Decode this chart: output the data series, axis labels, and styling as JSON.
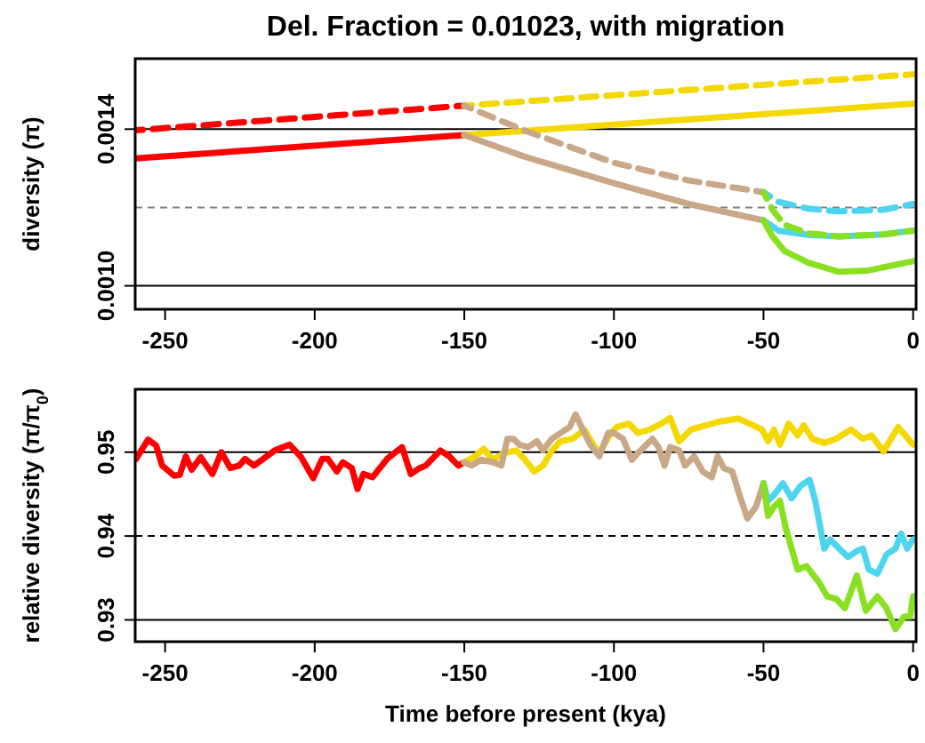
{
  "chart_data": [
    {
      "type": "line",
      "title": "Del. Fraction = 0.01023, with migration",
      "ylabel": "diversity (π)",
      "xlim": [
        -260,
        1
      ],
      "xticks": [
        -250,
        -200,
        -150,
        -100,
        -50,
        0
      ],
      "ylim": [
        0.00094,
        0.00158
      ],
      "yticks": [
        {
          "value": 0.001,
          "label": "0.0010"
        },
        {
          "value": 0.0014,
          "label": "0.0014"
        }
      ],
      "ref_lines": [
        {
          "axis": "y",
          "value": 0.001,
          "color": "#000000",
          "line_style": "solid"
        },
        {
          "axis": "y",
          "value": 0.0014,
          "color": "#000000",
          "line_style": "solid"
        },
        {
          "axis": "y",
          "value": 0.0012,
          "color": "#808080",
          "line_style": "dashed"
        }
      ],
      "series": [
        {
          "color": "#ff0000",
          "line_style": "solid",
          "x": [
            -260,
            -150
          ],
          "values": [
            0.001325,
            0.001385
          ]
        },
        {
          "color": "#f5d800",
          "line_style": "solid",
          "x": [
            -150,
            0
          ],
          "values": [
            0.001385,
            0.001465
          ]
        },
        {
          "color": "#c9a888",
          "line_style": "solid",
          "x": [
            -150,
            -130,
            -100,
            -75,
            -50
          ],
          "values": [
            0.001385,
            0.00133,
            0.001262,
            0.001209,
            0.001167
          ]
        },
        {
          "color": "#4dd4ee",
          "line_style": "solid",
          "x": [
            -50,
            -45,
            -35,
            -25,
            -10,
            0
          ],
          "values": [
            0.001167,
            0.001141,
            0.00113,
            0.001126,
            0.001131,
            0.001141
          ]
        },
        {
          "color": "#88e020",
          "line_style": "solid",
          "x": [
            -50,
            -47,
            -43,
            -35,
            -25,
            -15,
            0
          ],
          "values": [
            0.001167,
            0.001126,
            0.001089,
            0.001059,
            0.001036,
            0.001039,
            0.001063
          ]
        },
        {
          "color": "#ff0000",
          "line_style": "dashed",
          "x": [
            -260,
            -150
          ],
          "values": [
            0.001397,
            0.00146
          ]
        },
        {
          "color": "#f5d800",
          "line_style": "dashed",
          "x": [
            -150,
            0
          ],
          "values": [
            0.00146,
            0.00154
          ]
        },
        {
          "color": "#c9a888",
          "line_style": "dashed",
          "x": [
            -150,
            -130,
            -100,
            -75,
            -50
          ],
          "values": [
            0.00146,
            0.001397,
            0.001314,
            0.001269,
            0.001239
          ]
        },
        {
          "color": "#4dd4ee",
          "line_style": "dashed",
          "x": [
            -50,
            -45,
            -35,
            -25,
            -10,
            0
          ],
          "values": [
            0.001239,
            0.001214,
            0.001197,
            0.00119,
            0.001194,
            0.001209
          ]
        },
        {
          "color": "#88e020",
          "line_style": "dashed",
          "x": [
            -50,
            -47,
            -43,
            -35,
            -25,
            -10,
            0
          ],
          "values": [
            0.001239,
            0.001194,
            0.001156,
            0.001134,
            0.001126,
            0.001131,
            0.001141
          ]
        }
      ]
    },
    {
      "type": "line",
      "xlabel": "Time before present (kya)",
      "ylabel": "relative diversity (π/π$_{0}$)",
      "xlim": [
        -260,
        1
      ],
      "xticks": [
        -250,
        -200,
        -150,
        -100,
        -50,
        0
      ],
      "ylim": [
        0.9274,
        0.9575
      ],
      "yticks": [
        0.93,
        0.94,
        0.95
      ],
      "ref_lines": [
        {
          "axis": "y",
          "value": 0.93,
          "color": "#000000",
          "line_style": "solid"
        },
        {
          "axis": "y",
          "value": 0.95,
          "color": "#000000",
          "line_style": "solid"
        },
        {
          "axis": "y",
          "value": 0.94,
          "color": "#000000",
          "line_style": "dashed"
        }
      ],
      "series": [
        {
          "color": "#ff0000",
          "x": [
            -259.7,
            -255.7,
            -253,
            -251,
            -247,
            -245.1,
            -243.1,
            -241.1,
            -238.1,
            -234.2,
            -231.2,
            -228.2,
            -225.3,
            -223.3,
            -220.3,
            -216.4,
            -213.4,
            -208.4,
            -204.5,
            -200.5,
            -197.5,
            -195.6,
            -192.6,
            -190.6,
            -187.6,
            -185.7,
            -183.7,
            -180.7,
            -175.8,
            -170.8,
            -167.9,
            -164.9,
            -162.9,
            -158,
            -155,
            -152,
            -150
          ],
          "values": [
            0.9492,
            0.9515,
            0.9508,
            0.9484,
            0.9472,
            0.9473,
            0.9495,
            0.9479,
            0.9494,
            0.9474,
            0.95,
            0.9481,
            0.9484,
            0.9492,
            0.9484,
            0.9494,
            0.9502,
            0.9509,
            0.9494,
            0.9469,
            0.9492,
            0.9492,
            0.9477,
            0.9488,
            0.9481,
            0.9456,
            0.9474,
            0.947,
            0.9492,
            0.9506,
            0.9474,
            0.9481,
            0.9484,
            0.9502,
            0.9495,
            0.9484,
            0.9488
          ]
        },
        {
          "color": "#f5d800",
          "x": [
            -150,
            -146.5,
            -143.5,
            -140.5,
            -136.6,
            -132.6,
            -129.7,
            -126.7,
            -123.7,
            -120.7,
            -117.8,
            -113.8,
            -109.9,
            -106.9,
            -104.9,
            -100.9,
            -99,
            -95,
            -92,
            -88.1,
            -84.1,
            -81.2,
            -78.2,
            -74.2,
            -69.3,
            -65.3,
            -58.4,
            -53.4,
            -50.5,
            -48.5,
            -46.5,
            -44.5,
            -41.6,
            -38.6,
            -36.6,
            -33.7,
            -29.7,
            -25.7,
            -20.8,
            -16.8,
            -13.9,
            -9.9,
            -5,
            0
          ],
          "values": [
            0.9488,
            0.9495,
            0.9504,
            0.9491,
            0.9499,
            0.9502,
            0.9491,
            0.9477,
            0.9484,
            0.9502,
            0.9513,
            0.9516,
            0.9527,
            0.9509,
            0.9499,
            0.9523,
            0.953,
            0.9534,
            0.9523,
            0.9527,
            0.9534,
            0.9541,
            0.9513,
            0.9527,
            0.9532,
            0.9536,
            0.954,
            0.9532,
            0.9527,
            0.9513,
            0.9527,
            0.9509,
            0.9534,
            0.952,
            0.9532,
            0.9516,
            0.9511,
            0.9516,
            0.9527,
            0.9516,
            0.952,
            0.9501,
            0.953,
            0.9509
          ]
        },
        {
          "color": "#c9a888",
          "x": [
            -150,
            -147.5,
            -144.5,
            -140.5,
            -137.6,
            -135.6,
            -133.6,
            -131.6,
            -128.7,
            -125.7,
            -123.7,
            -120.7,
            -117.8,
            -114.8,
            -112.8,
            -109.9,
            -107.9,
            -104.9,
            -101.9,
            -100,
            -97,
            -94,
            -91.1,
            -89.1,
            -87.1,
            -85.1,
            -83.1,
            -81.2,
            -78.2,
            -76.2,
            -73.2,
            -70.3,
            -67.3,
            -65.3,
            -63.3,
            -60.4,
            -58.4,
            -55.4,
            -52.5,
            -50
          ],
          "values": [
            0.9488,
            0.9484,
            0.9491,
            0.9488,
            0.9484,
            0.9516,
            0.9516,
            0.9509,
            0.9506,
            0.9513,
            0.9502,
            0.9516,
            0.9523,
            0.953,
            0.9545,
            0.9523,
            0.9509,
            0.9495,
            0.9523,
            0.9523,
            0.9516,
            0.9491,
            0.9502,
            0.9509,
            0.9516,
            0.9506,
            0.9484,
            0.9506,
            0.9502,
            0.9484,
            0.9495,
            0.9477,
            0.947,
            0.9495,
            0.9481,
            0.9477,
            0.9453,
            0.9421,
            0.9435,
            0.9463
          ]
        },
        {
          "color": "#4dd4ee",
          "x": [
            -50,
            -48.5,
            -46.5,
            -43.5,
            -40.6,
            -37.6,
            -34.6,
            -32.7,
            -29.7,
            -27.7,
            -24.7,
            -21.8,
            -18.8,
            -16.8,
            -14.8,
            -11.9,
            -8.9,
            -5.9,
            -4,
            -2,
            0
          ],
          "values": [
            0.9463,
            0.9442,
            0.9449,
            0.9463,
            0.9445,
            0.946,
            0.9467,
            0.9442,
            0.9385,
            0.9396,
            0.9385,
            0.9375,
            0.9382,
            0.9385,
            0.936,
            0.9355,
            0.9378,
            0.9385,
            0.9403,
            0.9385,
            0.9396
          ]
        },
        {
          "color": "#88e020",
          "x": [
            -50,
            -48.5,
            -46.5,
            -44.5,
            -42.6,
            -38.6,
            -35.6,
            -31.7,
            -28.7,
            -25.7,
            -22.8,
            -18.8,
            -15.8,
            -11.9,
            -8.9,
            -5.9,
            -3,
            -1,
            0
          ],
          "values": [
            0.9463,
            0.9424,
            0.9435,
            0.9442,
            0.941,
            0.936,
            0.9364,
            0.9346,
            0.9328,
            0.9325,
            0.9314,
            0.9353,
            0.9311,
            0.9328,
            0.9314,
            0.9289,
            0.9304,
            0.9304,
            0.9328
          ]
        }
      ]
    }
  ]
}
